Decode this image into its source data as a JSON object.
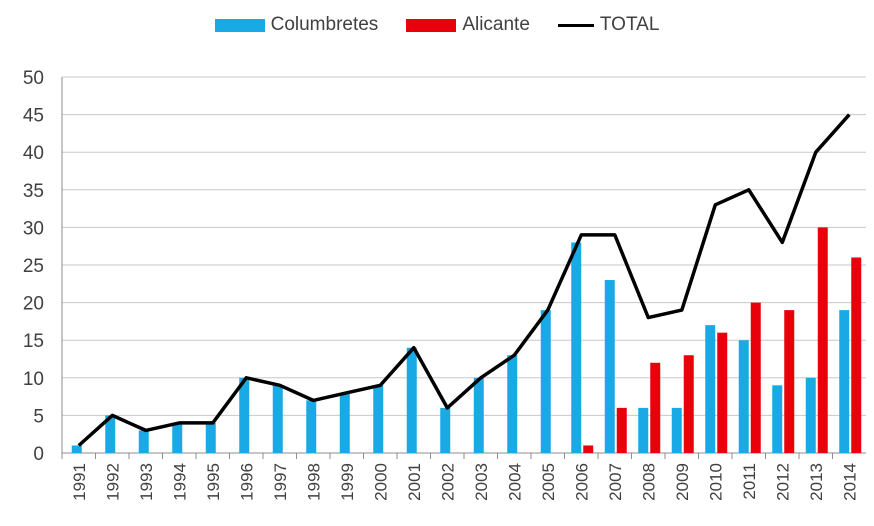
{
  "chart_data": {
    "type": "bar",
    "title": "",
    "xlabel": "",
    "ylabel": "",
    "categories": [
      "1991",
      "1992",
      "1993",
      "1994",
      "1995",
      "1996",
      "1997",
      "1998",
      "1999",
      "2000",
      "2001",
      "2002",
      "2003",
      "2004",
      "2005",
      "2006",
      "2007",
      "2008",
      "2009",
      "2010",
      "2011",
      "2012",
      "2013",
      "2014"
    ],
    "ylim": [
      0,
      50
    ],
    "yticks": [
      "0",
      "5",
      "10",
      "15",
      "20",
      "25",
      "30",
      "35",
      "40",
      "45",
      "50"
    ],
    "grid": true,
    "legend_position": "top-center",
    "series": [
      {
        "name": "Columbretes",
        "kind": "bar",
        "color": "#19a9e5",
        "values": [
          1,
          5,
          3,
          4,
          4,
          10,
          9,
          7,
          8,
          9,
          14,
          6,
          10,
          13,
          19,
          28,
          23,
          6,
          6,
          17,
          15,
          9,
          10,
          19
        ]
      },
      {
        "name": "Alicante",
        "kind": "bar",
        "color": "#e8000b",
        "values": [
          0,
          0,
          0,
          0,
          0,
          0,
          0,
          0,
          0,
          0,
          0,
          0,
          0,
          0,
          0,
          1,
          6,
          12,
          13,
          16,
          20,
          19,
          30,
          26
        ]
      },
      {
        "name": "TOTAL",
        "kind": "line",
        "color": "#000000",
        "values": [
          1,
          5,
          3,
          4,
          4,
          10,
          9,
          7,
          8,
          9,
          14,
          6,
          10,
          13,
          19,
          29,
          29,
          18,
          19,
          33,
          35,
          28,
          40,
          45
        ]
      }
    ]
  }
}
